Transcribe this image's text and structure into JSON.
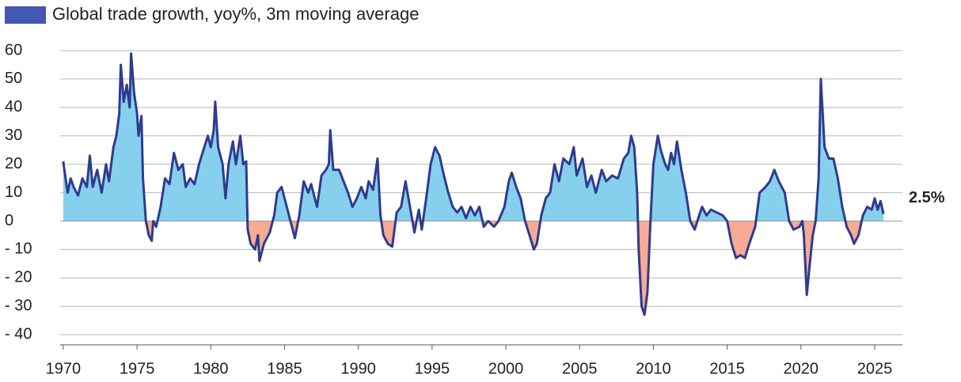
{
  "chart_data": {
    "type": "area-line",
    "series": [
      {
        "name": "Global trade growth, yoy%, 3m moving average",
        "color": "#2e3b8f",
        "legend_color": "#4358b0",
        "positive_color": "#86d0ee",
        "negative_color": "#f7ab94",
        "x": [
          1970.0,
          1970.1,
          1970.3,
          1970.5,
          1970.7,
          1971.0,
          1971.3,
          1971.6,
          1971.8,
          1972.0,
          1972.3,
          1972.6,
          1972.9,
          1973.1,
          1973.4,
          1973.6,
          1973.8,
          1973.9,
          1974.1,
          1974.3,
          1974.5,
          1974.6,
          1974.8,
          1975.0,
          1975.1,
          1975.3,
          1975.4,
          1975.6,
          1975.8,
          1976.0,
          1976.1,
          1976.3,
          1976.6,
          1976.9,
          1977.2,
          1977.5,
          1977.8,
          1978.1,
          1978.3,
          1978.6,
          1978.9,
          1979.2,
          1979.5,
          1979.8,
          1980.0,
          1980.2,
          1980.3,
          1980.5,
          1980.8,
          1981.0,
          1981.2,
          1981.5,
          1981.7,
          1982.0,
          1982.2,
          1982.4,
          1982.5,
          1982.7,
          1983.0,
          1983.2,
          1983.3,
          1983.6,
          1984.0,
          1984.3,
          1984.5,
          1984.8,
          1985.2,
          1985.5,
          1985.7,
          1986.0,
          1986.3,
          1986.6,
          1986.8,
          1987.2,
          1987.5,
          1987.8,
          1988.0,
          1988.1,
          1988.3,
          1988.7,
          1989.0,
          1989.3,
          1989.6,
          1989.9,
          1990.2,
          1990.5,
          1990.7,
          1991.0,
          1991.3,
          1991.5,
          1991.7,
          1992.0,
          1992.3,
          1992.6,
          1992.9,
          1993.2,
          1993.4,
          1993.6,
          1993.8,
          1994.1,
          1994.3,
          1994.6,
          1994.9,
          1995.2,
          1995.5,
          1995.8,
          1996.1,
          1996.4,
          1996.7,
          1997.0,
          1997.3,
          1997.6,
          1997.9,
          1998.2,
          1998.5,
          1998.8,
          1999.2,
          1999.5,
          1999.9,
          2000.2,
          2000.4,
          2000.7,
          2001.0,
          2001.3,
          2001.6,
          2001.9,
          2002.1,
          2002.4,
          2002.7,
          2003.0,
          2003.3,
          2003.6,
          2003.9,
          2004.3,
          2004.6,
          2004.8,
          2005.2,
          2005.5,
          2005.8,
          2006.1,
          2006.5,
          2006.8,
          2007.2,
          2007.6,
          2008.0,
          2008.3,
          2008.5,
          2008.7,
          2008.9,
          2009.0,
          2009.2,
          2009.4,
          2009.6,
          2009.8,
          2010.0,
          2010.3,
          2010.5,
          2010.8,
          2011.0,
          2011.2,
          2011.4,
          2011.6,
          2011.9,
          2012.2,
          2012.5,
          2012.8,
          2013.1,
          2013.3,
          2013.6,
          2013.9,
          2014.3,
          2014.7,
          2015.0,
          2015.3,
          2015.6,
          2015.9,
          2016.2,
          2016.5,
          2016.9,
          2017.2,
          2017.6,
          2017.9,
          2018.2,
          2018.5,
          2018.9,
          2019.2,
          2019.5,
          2019.9,
          2020.1,
          2020.2,
          2020.4,
          2020.6,
          2020.8,
          2021.0,
          2021.2,
          2021.35,
          2021.6,
          2021.9,
          2022.2,
          2022.5,
          2022.8,
          2023.1,
          2023.4,
          2023.6,
          2023.9,
          2024.2,
          2024.5,
          2024.8,
          2025.0,
          2025.2,
          2025.4,
          2025.6
        ],
        "values": [
          21,
          17,
          10,
          15,
          12,
          9,
          15,
          12,
          23,
          12,
          18,
          10,
          20,
          14,
          26,
          30,
          38,
          55,
          42,
          48,
          40,
          59,
          45,
          38,
          30,
          37,
          15,
          0,
          -5,
          -7,
          0,
          -2,
          5,
          15,
          13,
          24,
          18,
          20,
          12,
          15,
          13,
          20,
          25,
          30,
          26,
          32,
          42,
          26,
          20,
          8,
          20,
          28,
          20,
          30,
          20,
          21,
          -3,
          -8,
          -10,
          -5,
          -14,
          -8,
          -4,
          2,
          10,
          12,
          4,
          -2,
          -6,
          2,
          14,
          10,
          13,
          5,
          16,
          18,
          20,
          32,
          18,
          18,
          14,
          10,
          5,
          8,
          12,
          8,
          14,
          11,
          22,
          2,
          -5,
          -8,
          -9,
          3,
          5,
          14,
          8,
          2,
          -4,
          4,
          -3,
          8,
          20,
          26,
          23,
          16,
          10,
          5,
          3,
          5,
          1,
          5,
          2,
          5,
          -2,
          0,
          -2,
          0,
          5,
          14,
          17,
          12,
          8,
          0,
          -5,
          -10,
          -8,
          2,
          8,
          10,
          20,
          14,
          22,
          20,
          26,
          16,
          22,
          12,
          16,
          10,
          18,
          14,
          16,
          15,
          22,
          24,
          30,
          26,
          10,
          -10,
          -30,
          -33,
          -25,
          0,
          20,
          30,
          25,
          20,
          18,
          24,
          20,
          28,
          18,
          10,
          0,
          -3,
          2,
          5,
          2,
          4,
          3,
          2,
          0,
          -8,
          -13,
          -12,
          -13,
          -8,
          -2,
          10,
          12,
          14,
          18,
          14,
          10,
          0,
          -3,
          -2,
          0,
          -5,
          -26,
          -15,
          -5,
          0,
          15,
          50,
          26,
          22,
          22,
          15,
          5,
          -2,
          -5,
          -8,
          -5,
          2,
          5,
          4,
          8,
          4,
          7,
          2.5
        ]
      }
    ],
    "annotation": "2.5%",
    "annotation_color": "#4a5aa8",
    "xlim": [
      1969.79,
      2026.88
    ],
    "xticks": [
      1970,
      1975,
      1980,
      1985,
      1990,
      1995,
      2000,
      2005,
      2010,
      2015,
      2020,
      2025
    ],
    "ylim": [
      -43.3,
      60
    ],
    "yticks": [
      60,
      50,
      40,
      30,
      20,
      10,
      0,
      {
        "value": -10,
        "label": "- 10"
      },
      {
        "value": -20,
        "label": "- 20"
      },
      {
        "value": -30,
        "label": "- 30"
      },
      {
        "value": -40,
        "label": "- 40"
      }
    ],
    "grid": true
  }
}
